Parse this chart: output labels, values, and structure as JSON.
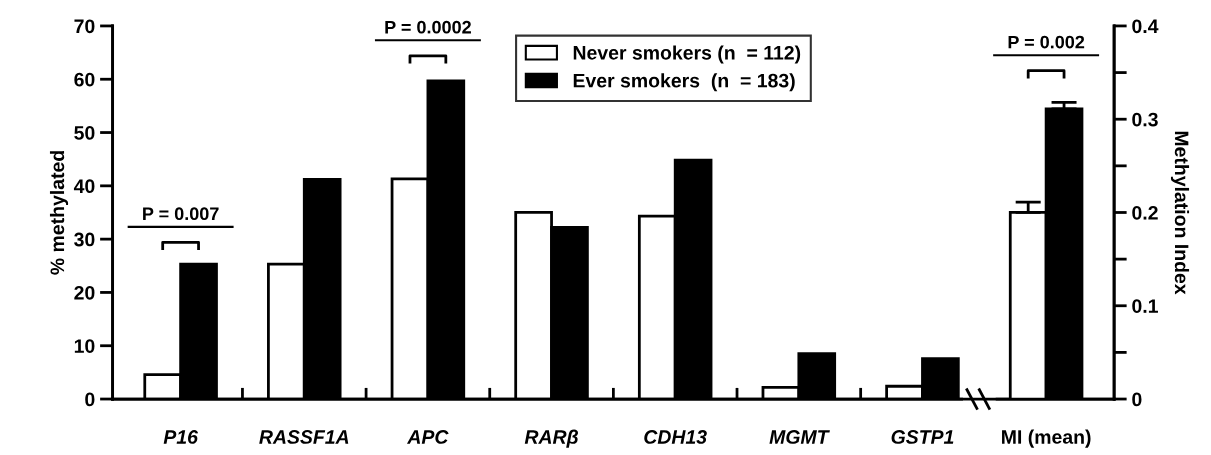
{
  "chart_data": {
    "type": "bar",
    "categories": [
      "P16",
      "RASSF1A",
      "APC",
      "RARβ",
      "CDH13",
      "MGMT",
      "GSTP1",
      "MI (mean)"
    ],
    "series": [
      {
        "name": "Never smokers (n  = 112)",
        "color": "#ffffff",
        "values": [
          4.6,
          25.3,
          41.3,
          35,
          34.3,
          2.2,
          2.4,
          null
        ]
      },
      {
        "name": "Ever smokers  (n  = 183)",
        "color": "#000000",
        "values": [
          25.3,
          41.2,
          59.7,
          32.2,
          44.8,
          8.5,
          7.6,
          null
        ]
      },
      {
        "color": "#ffffff",
        "axis": "y2",
        "values": [
          null,
          null,
          null,
          null,
          null,
          null,
          null,
          0.2
        ],
        "errors": [
          null,
          null,
          null,
          null,
          null,
          null,
          null,
          [
            0.2,
            0.211
          ]
        ]
      },
      {
        "color": "#000000",
        "axis": "y2",
        "values": [
          null,
          null,
          null,
          null,
          null,
          null,
          null,
          0.311
        ],
        "errors": [
          null,
          null,
          null,
          null,
          null,
          null,
          null,
          [
            0.311,
            0.318
          ]
        ]
      }
    ],
    "ylabel": "% methylated",
    "y2label": "Methylation Index",
    "ylim": [
      0,
      70
    ],
    "yticks": [
      0,
      10,
      20,
      30,
      40,
      50,
      60,
      70
    ],
    "y2lim": [
      0,
      0.4
    ],
    "y2ticks": [
      0,
      {
        "value": 0.05,
        "label": null
      },
      0.1,
      {
        "value": 0.15,
        "label": null
      },
      0.2,
      {
        "value": 0.25,
        "label": null
      },
      0.3,
      {
        "value": 0.35,
        "label": null
      },
      0.4
    ],
    "annotations": [
      "P = 0.007",
      "P = 0.0002",
      "P = 0.002"
    ],
    "legend": "top",
    "grid": false
  }
}
